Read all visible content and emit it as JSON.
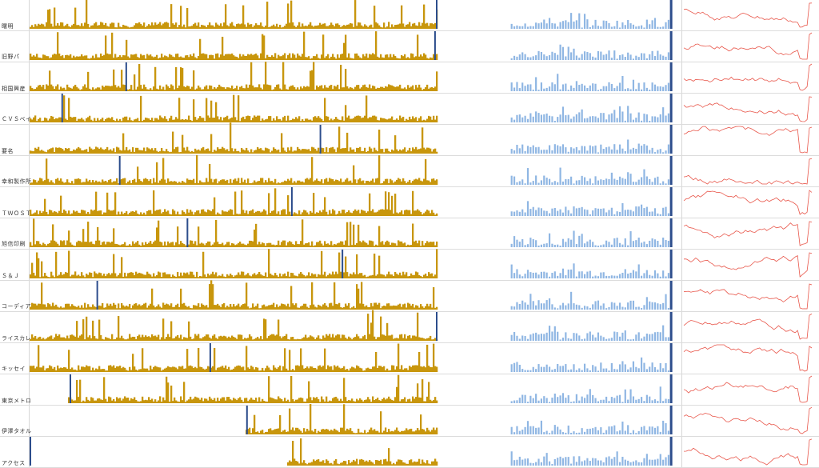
{
  "colors": {
    "volume_bar": "#c8960c",
    "highlight": "#2c4d8c",
    "blue_bar": "#8fb6e3",
    "sparkline": "#e8564a",
    "row_divider": "#dcdcdc"
  },
  "rows": [
    {
      "label": "曙明"
    },
    {
      "label": "旧野パ"
    },
    {
      "label": "相国興産"
    },
    {
      "label": "ＣＶＳベイ"
    },
    {
      "label": "要名"
    },
    {
      "label": "幸和製作所"
    },
    {
      "label": "ＴＷＯＳＴ"
    },
    {
      "label": "旭信印刷"
    },
    {
      "label": "Ｓ＆Ｊ"
    },
    {
      "label": "コーディア"
    },
    {
      "label": "ライスカレ"
    },
    {
      "label": "キッセイ"
    },
    {
      "label": "東京メトロ"
    },
    {
      "label": "伊澤タオル"
    },
    {
      "label": "アクセス"
    }
  ],
  "chart_data": {
    "type": "bar",
    "panels": [
      "volume-history-bars",
      "recent-volume-bars",
      "price-sparkline"
    ],
    "highlight_position_fraction": [
      1.0,
      0.992,
      0.235,
      0.078,
      0.711,
      0.219,
      0.641,
      0.385,
      0.765,
      0.164,
      1.0,
      0.441,
      0.098,
      0.531,
      0.0
    ],
    "series_start_fraction": [
      0,
      0,
      0,
      0,
      0,
      0,
      0,
      0,
      0,
      0,
      0,
      0,
      0.098,
      0.531,
      0.633
    ]
  }
}
